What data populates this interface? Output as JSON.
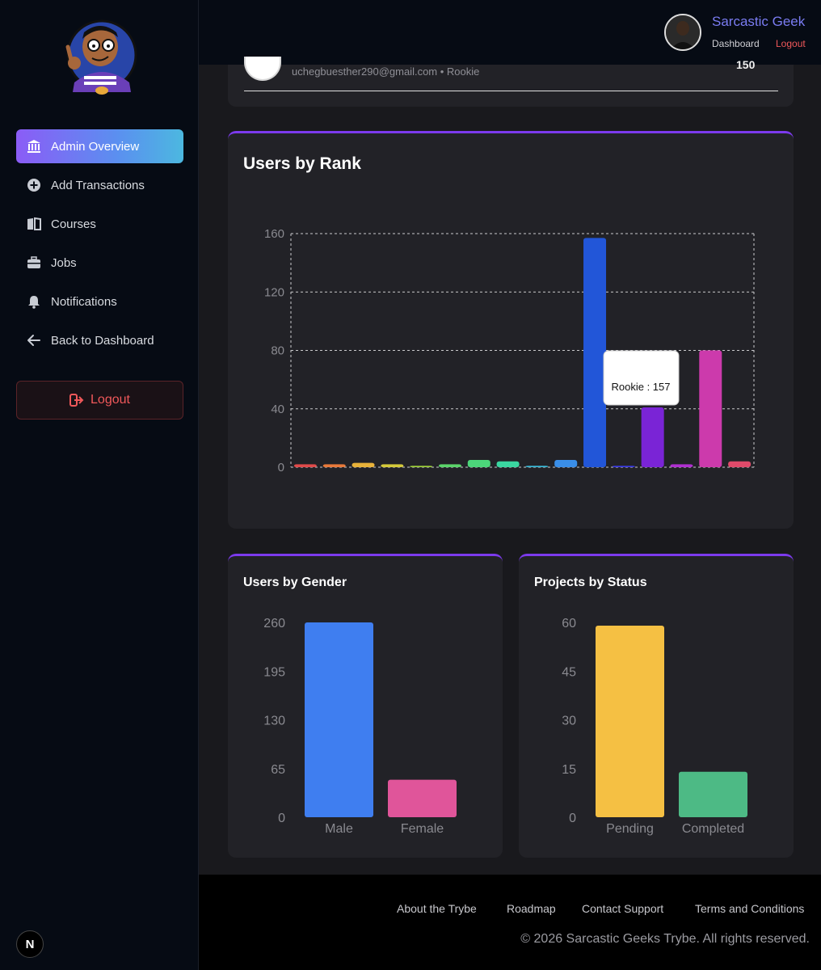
{
  "header": {
    "user_name": "Sarcastic Geek",
    "dashboard_link": "Dashboard",
    "logout_link": "Logout"
  },
  "sidebar": {
    "items": [
      {
        "label": "Admin Overview",
        "icon": "bank-icon",
        "active": true
      },
      {
        "label": "Add Transactions",
        "icon": "plus-circle-icon",
        "active": false
      },
      {
        "label": "Courses",
        "icon": "book-icon",
        "active": false
      },
      {
        "label": "Jobs",
        "icon": "briefcase-icon",
        "active": false
      },
      {
        "label": "Notifications",
        "icon": "bell-icon",
        "active": false
      },
      {
        "label": "Back to Dashboard",
        "icon": "arrow-left-icon",
        "active": false
      }
    ],
    "logout_label": "Logout",
    "badge": "N"
  },
  "top_row": {
    "email": "uchegbuesther290@gmail.com • Rookie",
    "value": "150"
  },
  "colors": {
    "accent": "#7c3aed",
    "logout_red": "#f0585a",
    "user_name": "#7a7cf2"
  },
  "chart_data": [
    {
      "type": "bar",
      "title": "Users by Rank",
      "categories": [
        "",
        "",
        "",
        "",
        "",
        "",
        "",
        "",
        "",
        "",
        "Rookie",
        "",
        "",
        "",
        "",
        ""
      ],
      "values": [
        2,
        2,
        3,
        2,
        1,
        2,
        5,
        4,
        1,
        5,
        157,
        1,
        41,
        2,
        80,
        4
      ],
      "colors": [
        "#e04a4a",
        "#e8793a",
        "#e8b23a",
        "#d4c93a",
        "#9ccc3a",
        "#5bd46a",
        "#4cd67a",
        "#3ad6a0",
        "#3ab8d6",
        "#3a8ee8",
        "#2256d8",
        "#3a3ae0",
        "#7a24d6",
        "#b030d0",
        "#cc3aac",
        "#e04a6a"
      ],
      "ylim": [
        0,
        160
      ],
      "yticks": [
        0,
        40,
        80,
        120,
        160
      ],
      "grid": true,
      "tooltip": "Rookie : 157"
    },
    {
      "type": "bar",
      "title": "Users by Gender",
      "categories": [
        "Male",
        "Female"
      ],
      "values": [
        260,
        50
      ],
      "colors": [
        "#3f7ef0",
        "#e0559a"
      ],
      "ylim": [
        0,
        260
      ],
      "yticks": [
        0,
        65,
        130,
        195,
        260
      ]
    },
    {
      "type": "bar",
      "title": "Projects by Status",
      "categories": [
        "Pending",
        "Completed"
      ],
      "values": [
        59,
        14
      ],
      "colors": [
        "#f5c043",
        "#4dba85"
      ],
      "ylim": [
        0,
        60
      ],
      "yticks": [
        0,
        15,
        30,
        45,
        60
      ]
    }
  ],
  "footer": {
    "links": [
      "About the Trybe",
      "Roadmap",
      "Contact Support",
      "Terms and Conditions"
    ],
    "copyright": "© 2026 Sarcastic Geeks Trybe. All rights reserved."
  }
}
